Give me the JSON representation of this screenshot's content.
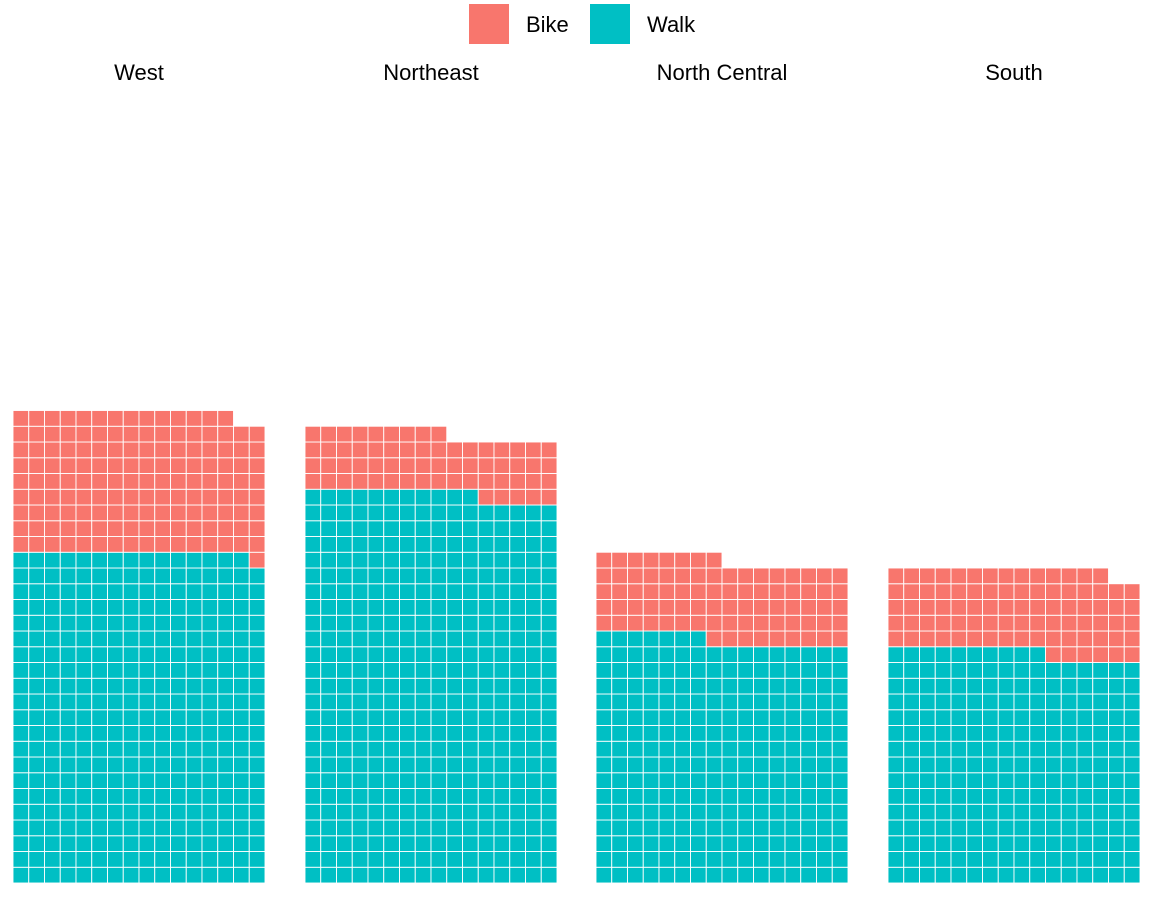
{
  "chart_data": {
    "type": "waffle",
    "title": "",
    "legend": {
      "position": "top",
      "entries": [
        {
          "name": "Bike",
          "color": "#F8766D"
        },
        {
          "name": "Walk",
          "color": "#00BFC4"
        }
      ]
    },
    "series_order": [
      "Walk",
      "Bike"
    ],
    "units_per_row": 16,
    "facets": [
      {
        "name": "West",
        "values": {
          "Walk": 335,
          "Bike": 143
        }
      },
      {
        "name": "Northeast",
        "values": {
          "Walk": 395,
          "Bike": 62
        }
      },
      {
        "name": "North Central",
        "values": {
          "Walk": 247,
          "Bike": 81
        }
      },
      {
        "name": "South",
        "values": {
          "Walk": 234,
          "Bike": 84
        }
      }
    ]
  }
}
